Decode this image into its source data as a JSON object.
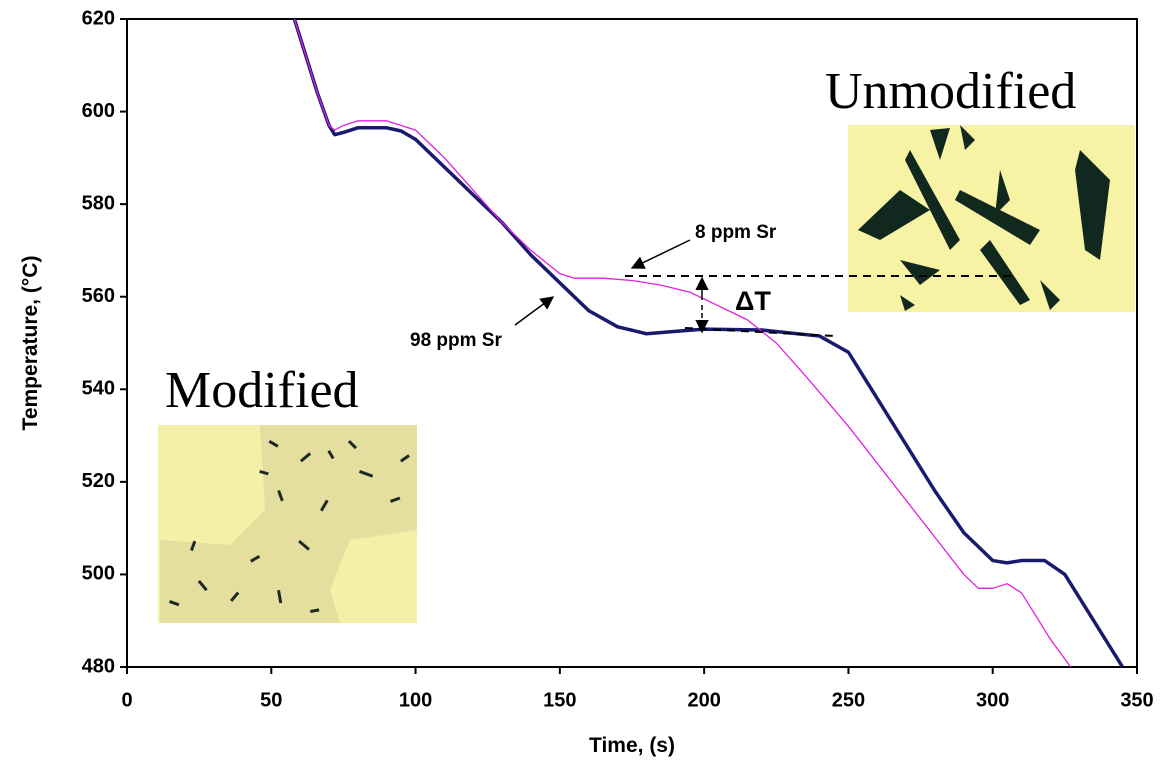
{
  "chart_data": {
    "type": "line",
    "xlabel": "Time, (s)",
    "ylabel": "Temperature, (°C)",
    "xlim": [
      0,
      350
    ],
    "xticks": [
      0,
      50,
      100,
      150,
      200,
      250,
      300,
      350
    ],
    "ylim": [
      480,
      620
    ],
    "yticks": [
      480,
      500,
      520,
      540,
      560,
      580,
      600,
      620
    ],
    "grid": false,
    "series": [
      {
        "name": "98 ppm Sr",
        "color": "#1a1a6e",
        "x": [
          58,
          62,
          66,
          70,
          72,
          75,
          80,
          90,
          95,
          100,
          110,
          120,
          130,
          140,
          150,
          155,
          160,
          170,
          180,
          190,
          200,
          220,
          240,
          250,
          260,
          270,
          280,
          290,
          300,
          305,
          310,
          318,
          325,
          335,
          345
        ],
        "values": [
          620,
          612,
          604,
          597,
          595,
          595.5,
          596.5,
          596.5,
          595.8,
          594,
          588,
          582,
          576,
          569,
          563,
          560,
          557,
          553.5,
          552,
          552.5,
          553,
          552.8,
          551.5,
          548,
          538,
          528,
          518,
          509,
          503,
          502.5,
          503,
          503,
          500,
          490,
          480
        ]
      },
      {
        "name": "8 ppm Sr",
        "color": "#e020e0",
        "x": [
          58,
          62,
          66,
          70,
          72,
          75,
          80,
          90,
          100,
          110,
          120,
          130,
          140,
          150,
          155,
          165,
          175,
          185,
          195,
          205,
          215,
          225,
          235,
          250,
          265,
          280,
          290,
          295,
          300,
          305,
          310,
          320,
          327
        ],
        "values": [
          620,
          612,
          604,
          597,
          596,
          597,
          598,
          598,
          596,
          590,
          583,
          576,
          570,
          565,
          564,
          564,
          563.5,
          562.5,
          561,
          558,
          555,
          550,
          543,
          532,
          520,
          508,
          500,
          497,
          497,
          498,
          496,
          486,
          480
        ]
      }
    ],
    "annotations": {
      "delta": "ΔT",
      "modified": "Modified",
      "unmodified": "Unmodified"
    }
  }
}
